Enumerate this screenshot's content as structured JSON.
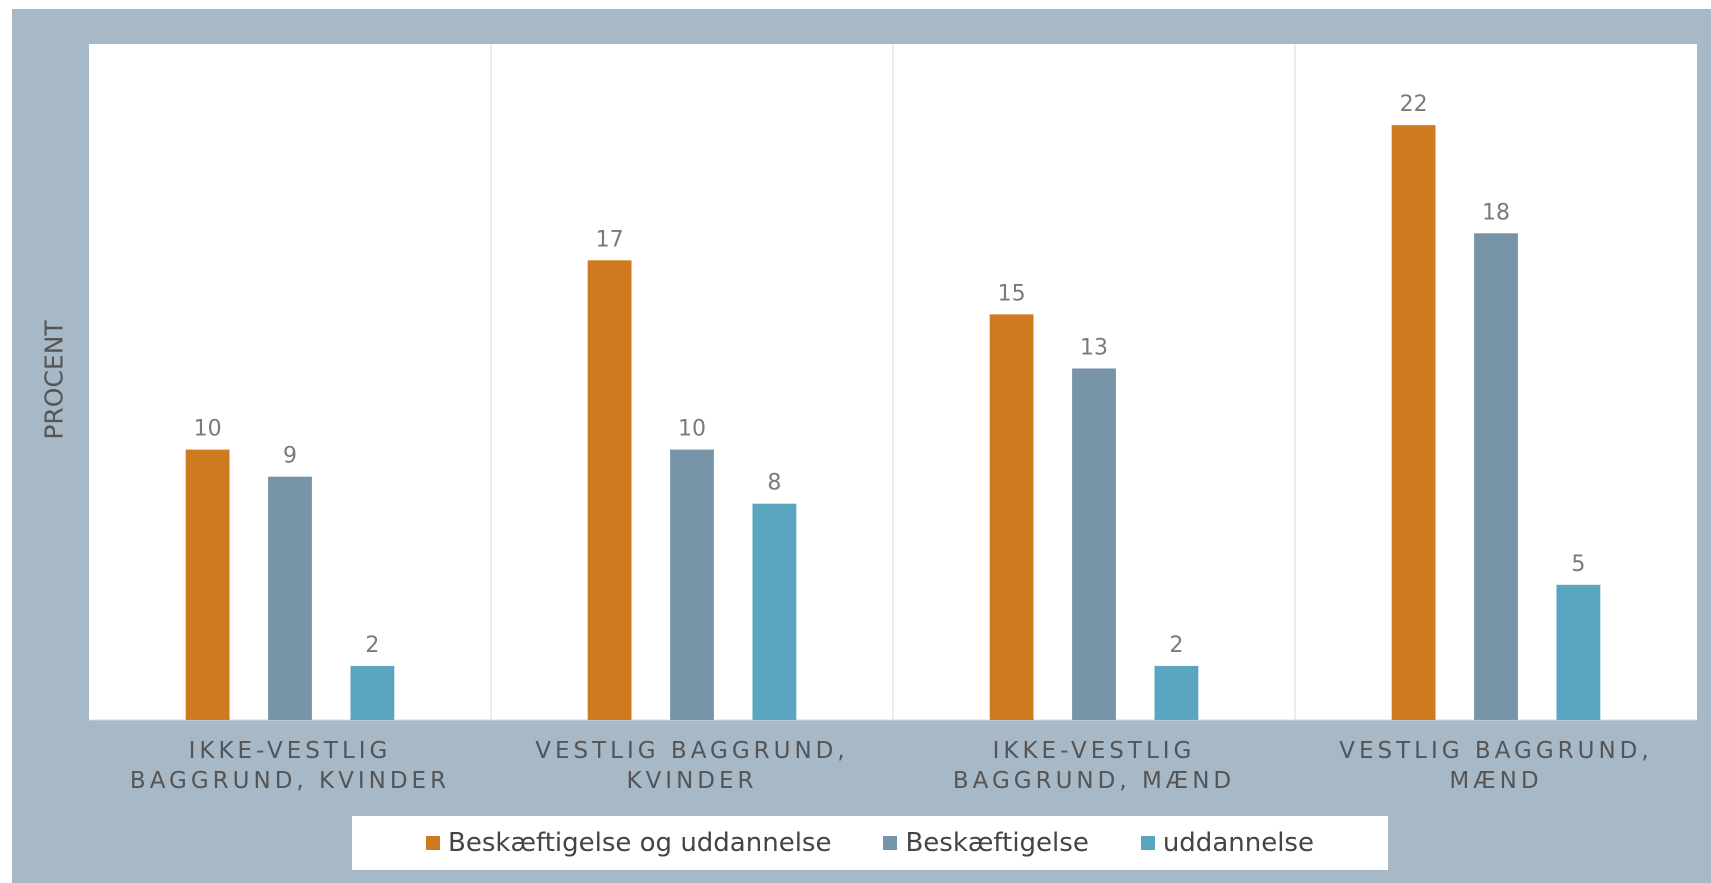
{
  "chart_data": {
    "type": "bar",
    "y_label": "PROCENT",
    "categories": [
      "IKKE-VESTLIG BAGGRUND, KVINDER",
      "VESTLIG BAGGRUND, KVINDER",
      "IKKE-VESTLIG BAGGRUND, MÆND",
      "VESTLIG BAGGRUND, MÆND"
    ],
    "series": [
      {
        "name": "Beskæftigelse og uddannelse",
        "color": "#d07a1f",
        "values": [
          10,
          17,
          15,
          22
        ]
      },
      {
        "name": "Beskæftigelse",
        "color": "#7894a8",
        "values": [
          9,
          10,
          13,
          18
        ]
      },
      {
        "name": "uddannelse",
        "color": "#5aa5c0",
        "values": [
          2,
          8,
          2,
          5
        ]
      }
    ],
    "ylim": [
      0,
      25
    ],
    "legend": "bottom"
  }
}
